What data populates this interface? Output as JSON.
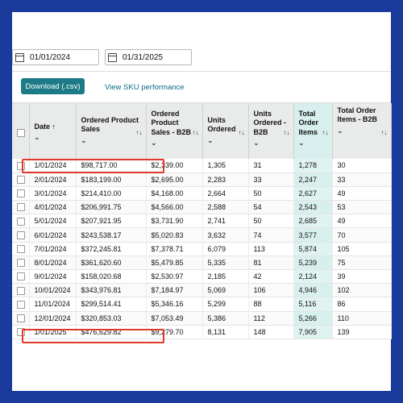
{
  "filters": {
    "start_date": "01/01/2024",
    "end_date": "01/31/2025"
  },
  "toolbar": {
    "download_label": "Download (.csv)",
    "view_sku_label": "View SKU performance"
  },
  "table": {
    "headers": [
      {
        "label": "Date ↑",
        "chevron": "⌄"
      },
      {
        "label": "Ordered Product Sales",
        "chevron": "⌄",
        "sort": "↑↓"
      },
      {
        "label": "Ordered Product Sales - B2B",
        "chevron": "⌄",
        "sort": "↑↓"
      },
      {
        "label": "Units Ordered",
        "chevron": "⌄",
        "sort": "↑↓"
      },
      {
        "label": "Units Ordered - B2B",
        "chevron": "⌄",
        "sort": "↑↓"
      },
      {
        "label": "Total Order Items",
        "chevron": "⌄",
        "sort": "↑↓"
      },
      {
        "label": "Total Order Items - B2B",
        "chevron": "⌄",
        "sort": "↑↓"
      }
    ],
    "rows": [
      [
        "1/01/2024",
        "$98,717.00",
        "$2,339.00",
        "1,305",
        "31",
        "1,278",
        "30"
      ],
      [
        "2/01/2024",
        "$183,199.00",
        "$2,695.00",
        "2,283",
        "33",
        "2,247",
        "33"
      ],
      [
        "3/01/2024",
        "$214,410.00",
        "$4,168.00",
        "2,664",
        "50",
        "2,627",
        "49"
      ],
      [
        "4/01/2024",
        "$206,991.75",
        "$4,566.00",
        "2,588",
        "54",
        "2,543",
        "53"
      ],
      [
        "5/01/2024",
        "$207,921.95",
        "$3,731.90",
        "2,741",
        "50",
        "2,685",
        "49"
      ],
      [
        "6/01/2024",
        "$243,538.17",
        "$5,020.83",
        "3,632",
        "74",
        "3,577",
        "70"
      ],
      [
        "7/01/2024",
        "$372,245.81",
        "$7,378.71",
        "6,079",
        "113",
        "5,874",
        "105"
      ],
      [
        "8/01/2024",
        "$361,620.60",
        "$5,479.85",
        "5,335",
        "81",
        "5,239",
        "75"
      ],
      [
        "9/01/2024",
        "$158,020.68",
        "$2,530.97",
        "2,185",
        "42",
        "2,124",
        "39"
      ],
      [
        "10/01/2024",
        "$343,976.81",
        "$7,184.97",
        "5,069",
        "106",
        "4,946",
        "102"
      ],
      [
        "11/01/2024",
        "$299,514.41",
        "$5,346.16",
        "5,299",
        "88",
        "5,116",
        "86"
      ],
      [
        "12/01/2024",
        "$320,853.03",
        "$7,053.49",
        "5,386",
        "112",
        "5,266",
        "110"
      ],
      [
        "1/01/2025",
        "$476,629.82",
        "$9,279.70",
        "8,131",
        "148",
        "7,905",
        "139"
      ]
    ]
  },
  "colors": {
    "frame": "#1a3a9c",
    "highlight": "#e0392a",
    "accent_button": "#1c7b86"
  }
}
